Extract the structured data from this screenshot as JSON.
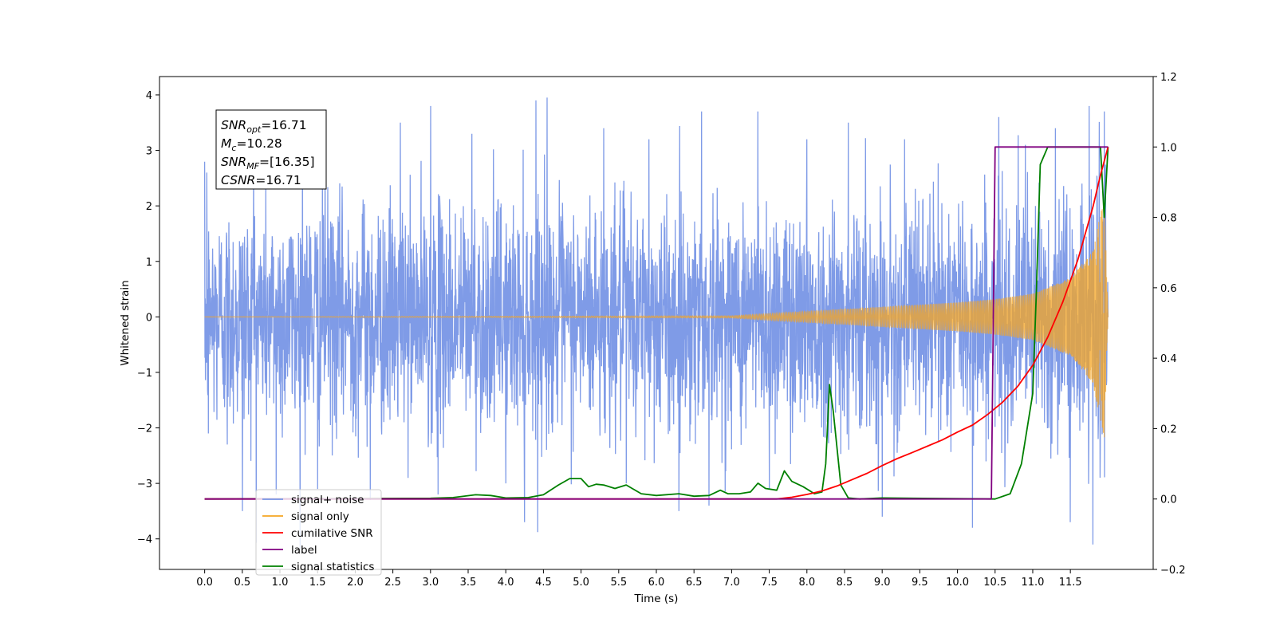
{
  "chart_data": {
    "type": "line",
    "xlabel": "Time (s)",
    "ylabel": "Whitened strain",
    "xlim": [
      -0.6,
      12.6
    ],
    "xticks": [
      0.0,
      0.5,
      1.0,
      1.5,
      2.0,
      2.5,
      3.0,
      3.5,
      4.0,
      4.5,
      5.0,
      5.5,
      6.0,
      6.5,
      7.0,
      7.5,
      8.0,
      8.5,
      9.0,
      9.5,
      10.0,
      10.5,
      11.0,
      11.5
    ],
    "xtick_labels": [
      "0.0",
      "0.5",
      "1.0",
      "1.5",
      "2.0",
      "2.5",
      "3.0",
      "3.5",
      "4.0",
      "4.5",
      "5.0",
      "5.5",
      "6.0",
      "6.5",
      "7.0",
      "7.5",
      "8.0",
      "8.5",
      "9.0",
      "9.5",
      "10.0",
      "10.5",
      "11.0",
      "11.5"
    ],
    "ylim_left": [
      -4.55,
      4.33
    ],
    "yticks_left": [
      4,
      3,
      2,
      1,
      0,
      -1,
      -2,
      -3,
      -4
    ],
    "ytick_labels_left": [
      "4",
      "3",
      "2",
      "1",
      "0",
      "−1",
      "−2",
      "−3",
      "−4"
    ],
    "ylim_right": [
      -0.2,
      1.2
    ],
    "yticks_right": [
      1.2,
      1.0,
      0.8,
      0.6,
      0.4,
      0.2,
      0.0,
      -0.2
    ],
    "ytick_labels_right": [
      "1.2",
      "1.0",
      "0.8",
      "0.6",
      "0.4",
      "0.2",
      "0.0",
      "−0.2"
    ],
    "grid": false,
    "legend_position": "lower-left",
    "annotation": {
      "lines": [
        {
          "sym": "SNR",
          "sub": "opt",
          "value": "=16.71"
        },
        {
          "sym": "M",
          "sub": "c",
          "value": "=10.28"
        },
        {
          "sym": "SNR",
          "sub": "MF",
          "value": "=[16.35]"
        },
        {
          "sym": "CSNR",
          "sub": "",
          "value": "=16.71"
        }
      ]
    },
    "series": [
      {
        "name": "signal+ noise",
        "color": "#7896e6",
        "axis": "left",
        "kind": "noise",
        "t_range": [
          0.0,
          12.0
        ],
        "typical_amplitude": 2.4,
        "spike_peaks": [
          {
            "x": 0.03,
            "y": 2.6
          },
          {
            "x": 0.05,
            "y": -2.1
          },
          {
            "x": 0.3,
            "y": -2.3
          },
          {
            "x": 0.5,
            "y": -3.5
          },
          {
            "x": 0.65,
            "y": 2.9
          },
          {
            "x": 0.95,
            "y": -3.2
          },
          {
            "x": 1.3,
            "y": 3.4
          },
          {
            "x": 1.5,
            "y": -3.1
          },
          {
            "x": 1.6,
            "y": 3.2
          },
          {
            "x": 2.2,
            "y": -3.3
          },
          {
            "x": 2.6,
            "y": 3.5
          },
          {
            "x": 3.0,
            "y": 3.8
          },
          {
            "x": 3.1,
            "y": -3.2
          },
          {
            "x": 3.55,
            "y": 3.3
          },
          {
            "x": 4.0,
            "y": -3.0
          },
          {
            "x": 4.25,
            "y": -3.7
          },
          {
            "x": 4.4,
            "y": 3.9
          },
          {
            "x": 4.55,
            "y": 3.95
          },
          {
            "x": 5.3,
            "y": 3.4
          },
          {
            "x": 5.6,
            "y": -3.0
          },
          {
            "x": 5.9,
            "y": 3.2
          },
          {
            "x": 6.3,
            "y": -3.5
          },
          {
            "x": 6.6,
            "y": 3.7
          },
          {
            "x": 6.7,
            "y": -3.4
          },
          {
            "x": 7.35,
            "y": 3.7
          },
          {
            "x": 7.5,
            "y": -3.1
          },
          {
            "x": 8.0,
            "y": 3.2
          },
          {
            "x": 8.55,
            "y": 3.5
          },
          {
            "x": 9.0,
            "y": -3.6
          },
          {
            "x": 9.3,
            "y": 3.2
          },
          {
            "x": 10.2,
            "y": -3.8
          },
          {
            "x": 10.55,
            "y": 3.6
          },
          {
            "x": 10.9,
            "y": 3.1
          },
          {
            "x": 11.3,
            "y": 3.4
          },
          {
            "x": 11.5,
            "y": -3.7
          },
          {
            "x": 11.75,
            "y": 3.8
          },
          {
            "x": 11.8,
            "y": -4.1
          },
          {
            "x": 11.95,
            "y": 3.7
          }
        ]
      },
      {
        "name": "signal only",
        "color": "#f5a623",
        "axis": "left",
        "kind": "chirp",
        "t_range": [
          0.0,
          12.0
        ],
        "envelope": {
          "x": [
            0.0,
            7.0,
            8.0,
            9.0,
            10.0,
            10.5,
            11.0,
            11.5,
            11.8,
            11.95,
            12.0
          ],
          "y": [
            0.0,
            0.02,
            0.1,
            0.18,
            0.26,
            0.32,
            0.42,
            0.7,
            1.2,
            2.2,
            0.0
          ]
        }
      },
      {
        "name": "cumilative SNR",
        "color": "#ff0000",
        "axis": "right",
        "x": [
          0.0,
          7.6,
          7.8,
          8.0,
          8.2,
          8.4,
          8.6,
          8.8,
          9.0,
          9.2,
          9.4,
          9.6,
          9.8,
          10.0,
          10.2,
          10.4,
          10.6,
          10.8,
          11.0,
          11.2,
          11.4,
          11.6,
          11.8,
          11.9,
          12.0
        ],
        "y": [
          0.0,
          0.0,
          0.005,
          0.013,
          0.023,
          0.037,
          0.055,
          0.073,
          0.095,
          0.115,
          0.132,
          0.15,
          0.168,
          0.19,
          0.21,
          0.24,
          0.275,
          0.32,
          0.38,
          0.46,
          0.56,
          0.68,
          0.83,
          0.92,
          1.0
        ]
      },
      {
        "name": "label",
        "color": "#800080",
        "axis": "right",
        "x": [
          0.0,
          10.45,
          10.5,
          12.0
        ],
        "y": [
          0.0,
          0.0,
          1.0,
          1.0
        ]
      },
      {
        "name": "signal statistics",
        "color": "#008000",
        "axis": "right",
        "x": [
          0.0,
          3.0,
          3.3,
          3.6,
          3.8,
          4.0,
          4.3,
          4.5,
          4.7,
          4.85,
          5.0,
          5.1,
          5.2,
          5.3,
          5.45,
          5.6,
          5.8,
          6.0,
          6.3,
          6.5,
          6.7,
          6.85,
          6.95,
          7.1,
          7.25,
          7.35,
          7.45,
          7.6,
          7.7,
          7.8,
          7.95,
          8.1,
          8.2,
          8.25,
          8.3,
          8.35,
          8.45,
          8.55,
          8.7,
          9.0,
          10.5,
          10.7,
          10.85,
          11.0,
          11.05,
          11.1,
          11.2,
          11.3,
          11.9,
          11.95,
          12.0
        ],
        "y": [
          0.0,
          0.002,
          0.004,
          0.012,
          0.01,
          0.003,
          0.004,
          0.012,
          0.04,
          0.058,
          0.058,
          0.035,
          0.042,
          0.04,
          0.03,
          0.04,
          0.015,
          0.01,
          0.015,
          0.008,
          0.01,
          0.025,
          0.015,
          0.015,
          0.02,
          0.045,
          0.03,
          0.025,
          0.08,
          0.05,
          0.035,
          0.015,
          0.02,
          0.1,
          0.325,
          0.25,
          0.04,
          0.003,
          0.0,
          0.003,
          0.0,
          0.015,
          0.1,
          0.3,
          0.6,
          0.95,
          1.0,
          1.0,
          1.0,
          0.8,
          1.0
        ]
      }
    ],
    "legend_entries": [
      {
        "label": "signal+ noise",
        "color": "#7896e6"
      },
      {
        "label": "signal only",
        "color": "#f5a623"
      },
      {
        "label": "cumilative SNR",
        "color": "#ff0000"
      },
      {
        "label": "label",
        "color": "#800080"
      },
      {
        "label": "signal statistics",
        "color": "#008000"
      }
    ]
  }
}
